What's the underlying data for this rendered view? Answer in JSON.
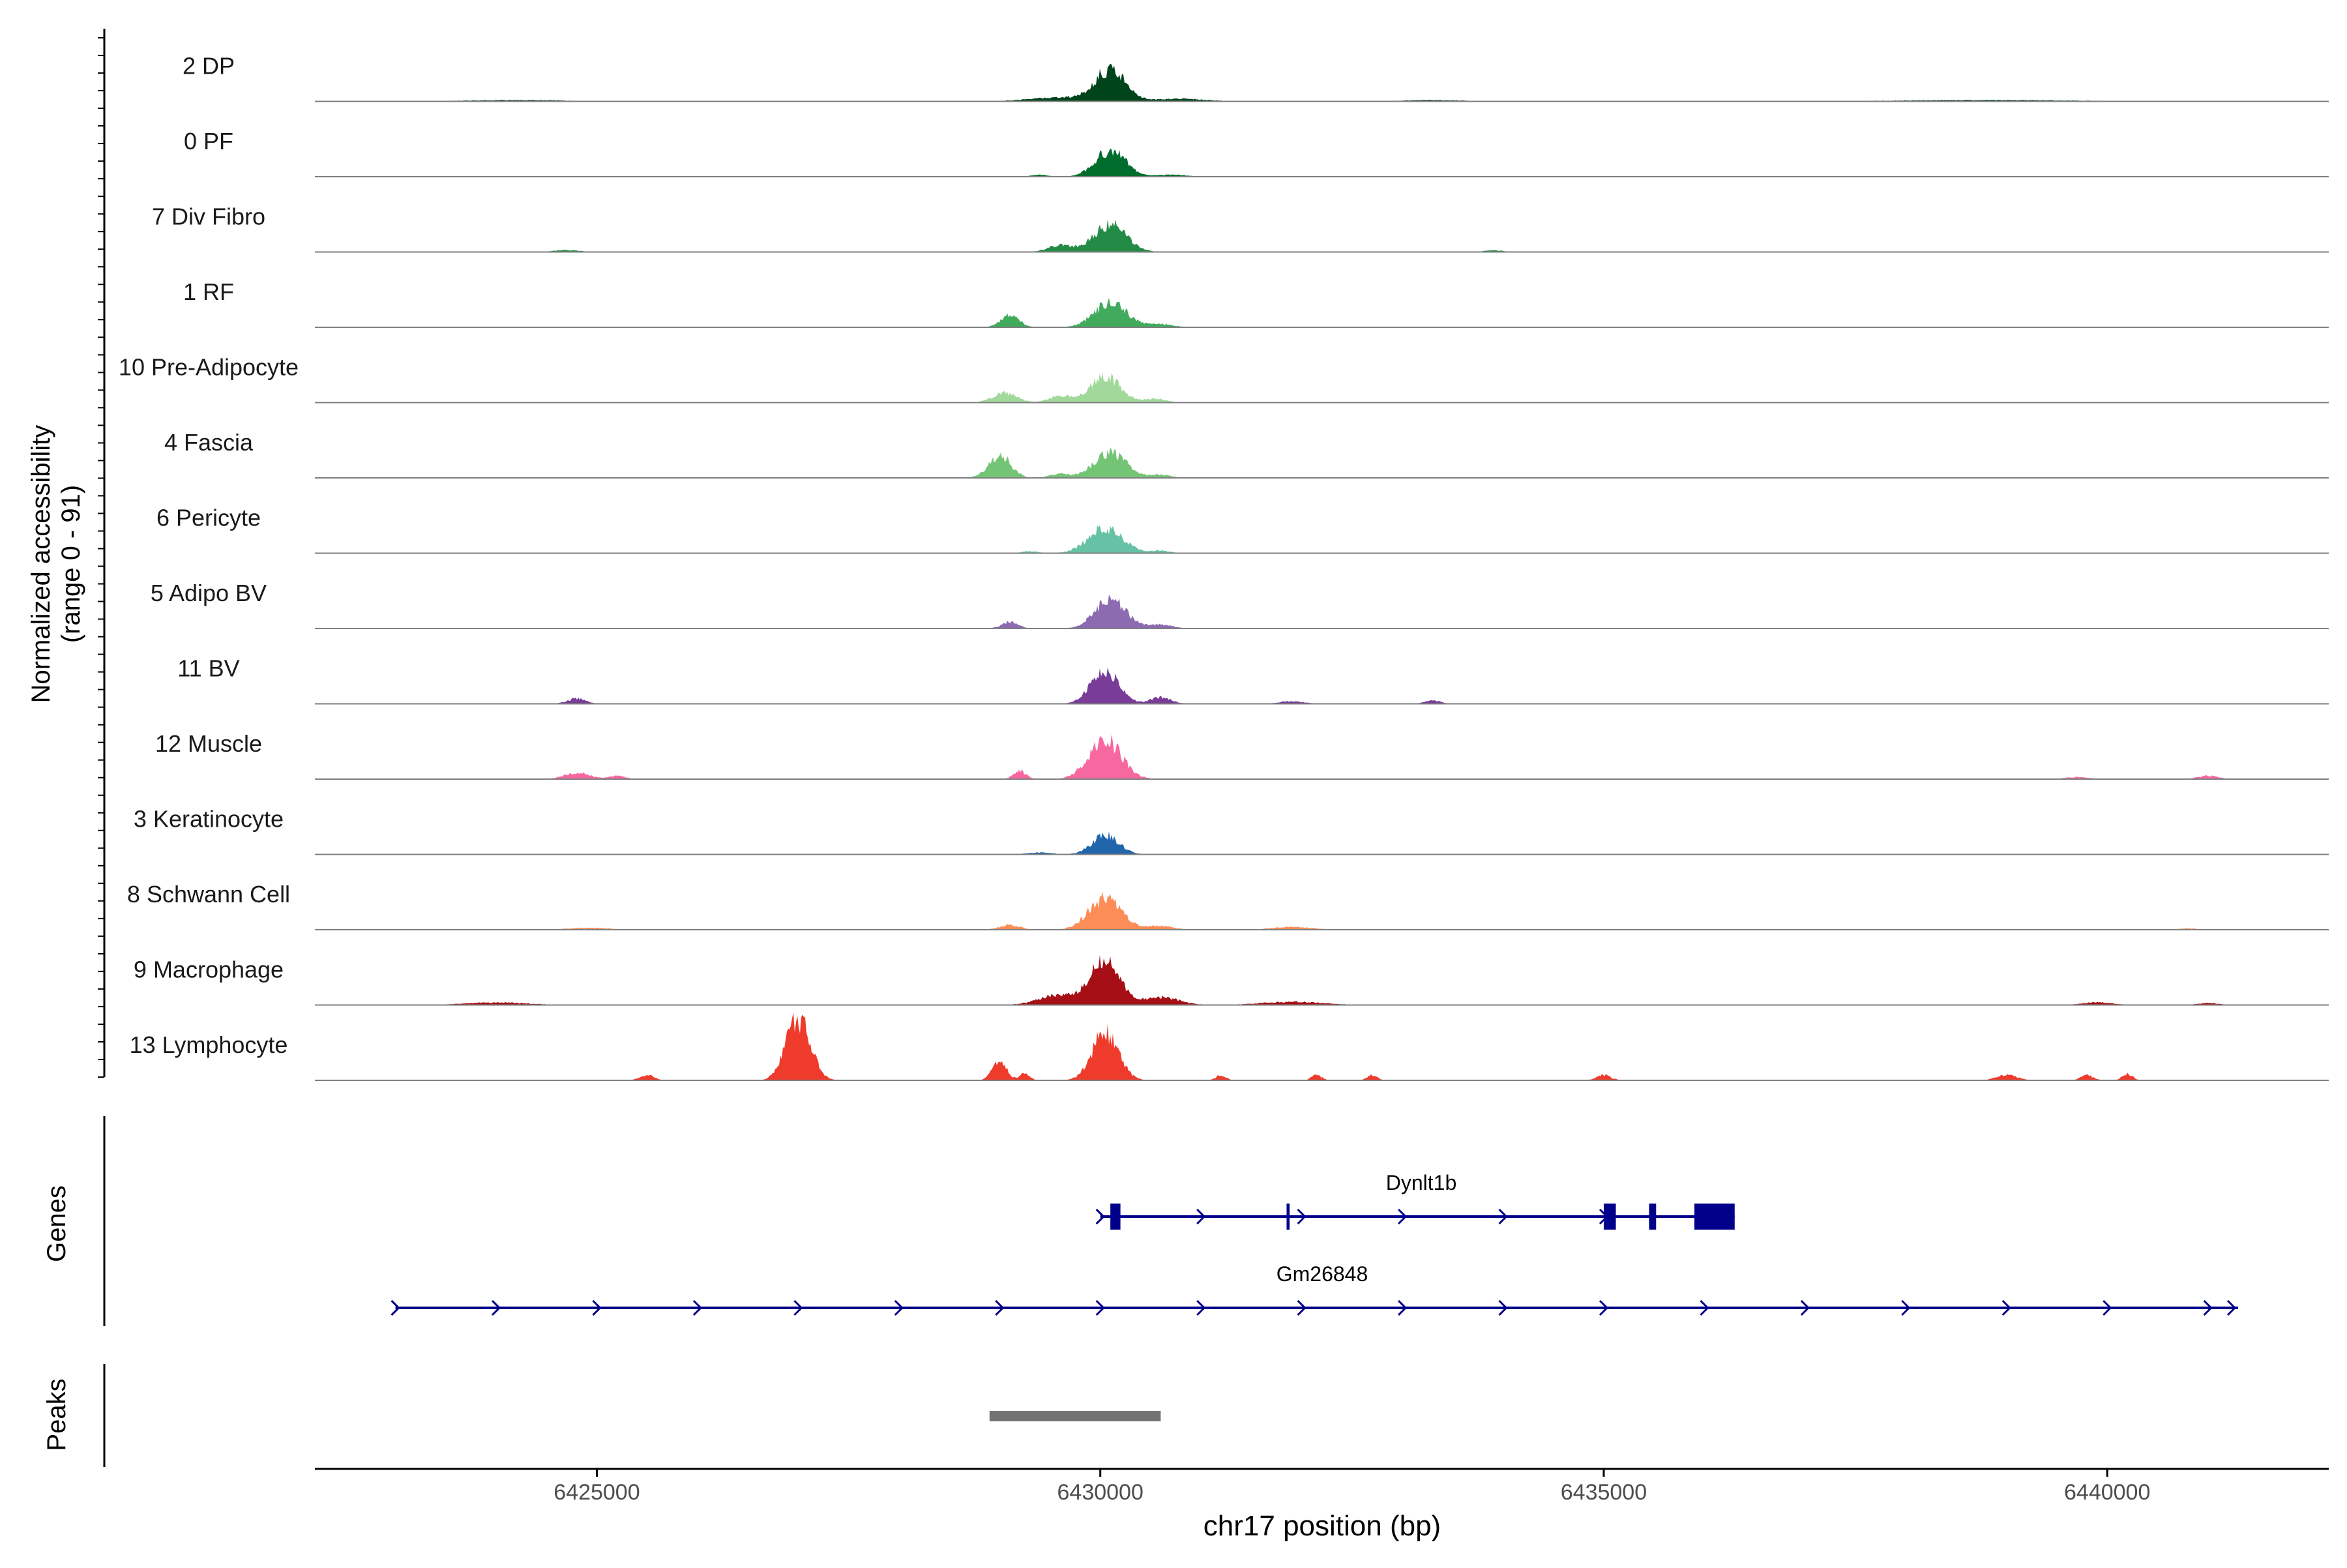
{
  "chart_data": {
    "type": "area",
    "ylabel_line1": "Normalized accessibility",
    "ylabel_line2": "(range 0 - 91)",
    "xlabel": "chr17 position (bp)",
    "xlim": [
      6422200,
      6442200
    ],
    "x_ticks": [
      6425000,
      6430000,
      6435000,
      6440000
    ],
    "x_tick_labels": [
      "6425000",
      "6430000",
      "6435000",
      "6440000"
    ],
    "y_range": [
      0,
      91
    ],
    "tracks": [
      {
        "name": "2 DP",
        "color": "#00441b",
        "peaks": [
          [
            6430100,
            150,
            0.48
          ],
          [
            6429600,
            300,
            0.06
          ],
          [
            6430800,
            250,
            0.04
          ],
          [
            6424200,
            500,
            0.02
          ],
          [
            6438800,
            900,
            0.02
          ],
          [
            6433300,
            300,
            0.02
          ]
        ]
      },
      {
        "name": "0 PF",
        "color": "#006d2c",
        "peaks": [
          [
            6430100,
            150,
            0.4
          ],
          [
            6429400,
            80,
            0.03
          ],
          [
            6430700,
            150,
            0.03
          ]
        ]
      },
      {
        "name": "7 Div Fibro",
        "color": "#238b45",
        "peaks": [
          [
            6430100,
            160,
            0.42
          ],
          [
            6429600,
            120,
            0.1
          ],
          [
            6424700,
            120,
            0.03
          ],
          [
            6433900,
            80,
            0.03
          ]
        ]
      },
      {
        "name": "1 RF",
        "color": "#41ab5d",
        "peaks": [
          [
            6430100,
            160,
            0.38
          ],
          [
            6429100,
            90,
            0.18
          ],
          [
            6430600,
            120,
            0.05
          ]
        ]
      },
      {
        "name": "10 Pre-Adipocyte",
        "color": "#a1d99b",
        "peaks": [
          [
            6430050,
            150,
            0.4
          ],
          [
            6429050,
            120,
            0.14
          ],
          [
            6429600,
            110,
            0.1
          ],
          [
            6430550,
            100,
            0.06
          ]
        ]
      },
      {
        "name": "4 Fascia",
        "color": "#74c476",
        "peaks": [
          [
            6430100,
            160,
            0.38
          ],
          [
            6429000,
            110,
            0.34
          ],
          [
            6429600,
            100,
            0.06
          ],
          [
            6430600,
            100,
            0.05
          ]
        ]
      },
      {
        "name": "6 Pericyte",
        "color": "#66c2a4",
        "peaks": [
          [
            6430050,
            170,
            0.38
          ],
          [
            6429300,
            80,
            0.03
          ],
          [
            6430600,
            90,
            0.04
          ]
        ]
      },
      {
        "name": "5 Adipo BV",
        "color": "#8c6bb1",
        "peaks": [
          [
            6430100,
            150,
            0.46
          ],
          [
            6429100,
            80,
            0.1
          ],
          [
            6430600,
            120,
            0.06
          ]
        ]
      },
      {
        "name": "11 BV",
        "color": "#7a3c99",
        "peaks": [
          [
            6430050,
            140,
            0.5
          ],
          [
            6424800,
            90,
            0.08
          ],
          [
            6430600,
            100,
            0.1
          ],
          [
            6431900,
            120,
            0.04
          ],
          [
            6433300,
            80,
            0.05
          ]
        ]
      },
      {
        "name": "12 Muscle",
        "color": "#f768a1",
        "peaks": [
          [
            6430050,
            160,
            0.6
          ],
          [
            6429200,
            60,
            0.12
          ],
          [
            6424800,
            120,
            0.1
          ],
          [
            6425200,
            80,
            0.05
          ],
          [
            6439700,
            120,
            0.03
          ],
          [
            6441000,
            100,
            0.05
          ]
        ]
      },
      {
        "name": "3 Keratinocyte",
        "color": "#2166ac",
        "peaks": [
          [
            6430050,
            130,
            0.3
          ],
          [
            6429400,
            120,
            0.03
          ]
        ]
      },
      {
        "name": "8 Schwann Cell",
        "color": "#fc8d59",
        "peaks": [
          [
            6430050,
            160,
            0.48
          ],
          [
            6429100,
            100,
            0.07
          ],
          [
            6430600,
            120,
            0.06
          ],
          [
            6424900,
            200,
            0.03
          ],
          [
            6431900,
            200,
            0.04
          ],
          [
            6440800,
            100,
            0.02
          ]
        ]
      },
      {
        "name": "9 Macrophage",
        "color": "#a50f15",
        "peaks": [
          [
            6430050,
            140,
            0.7
          ],
          [
            6429600,
            200,
            0.16
          ],
          [
            6430600,
            180,
            0.12
          ],
          [
            6424000,
            300,
            0.04
          ],
          [
            6431900,
            300,
            0.05
          ],
          [
            6439900,
            150,
            0.04
          ],
          [
            6441000,
            100,
            0.03
          ]
        ]
      },
      {
        "name": "13 Lymphocyte",
        "color": "#ef3b2c",
        "peaks": [
          [
            6427000,
            120,
            0.95
          ],
          [
            6430050,
            130,
            0.72
          ],
          [
            6429000,
            70,
            0.28
          ],
          [
            6429250,
            50,
            0.1
          ],
          [
            6425500,
            70,
            0.08
          ],
          [
            6431200,
            50,
            0.08
          ],
          [
            6432150,
            50,
            0.08
          ],
          [
            6432700,
            50,
            0.08
          ],
          [
            6435000,
            70,
            0.08
          ],
          [
            6439000,
            100,
            0.08
          ],
          [
            6439800,
            60,
            0.08
          ],
          [
            6440200,
            50,
            0.1
          ]
        ]
      }
    ],
    "genes_label": "Genes",
    "genes": [
      {
        "name": "Dynlt1b",
        "start": 6430000,
        "end": 6436300,
        "strand": "+",
        "exons": [
          [
            6430100,
            6430200
          ],
          [
            6431850,
            6431880
          ],
          [
            6435000,
            6435120
          ],
          [
            6435450,
            6435520
          ],
          [
            6435900,
            6436300
          ]
        ],
        "color": "#00008b"
      },
      {
        "name": "Gm26848",
        "start": 6423000,
        "end": 6441300,
        "strand": "+",
        "exons": [],
        "color": "#00008b"
      }
    ],
    "peaks_label": "Peaks",
    "peak_regions": [
      [
        6428900,
        6430600
      ]
    ],
    "peak_color": "#737373"
  }
}
